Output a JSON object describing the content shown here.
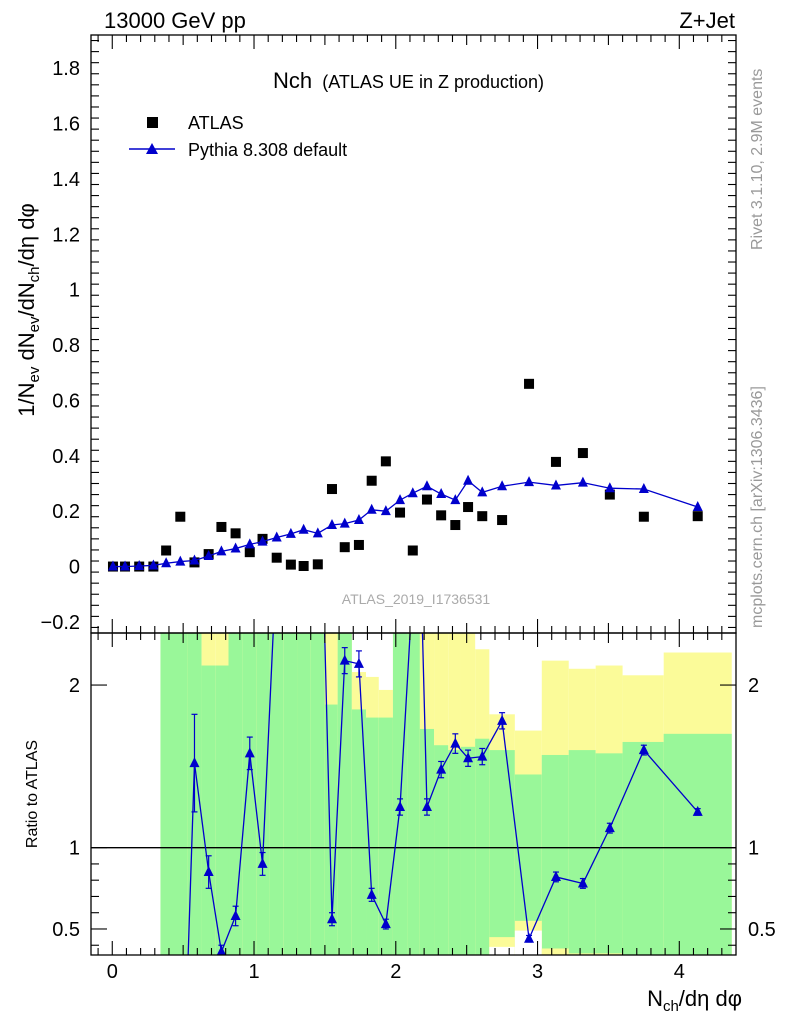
{
  "header": {
    "left": "13000 GeV pp",
    "right": "Z+Jet"
  },
  "side_labels": {
    "rivet": "Rivet 3.1.10,  2.9M events",
    "mcplots": "mcplots.cern.ch [arXiv:1306.3436]"
  },
  "colors": {
    "data": "#000000",
    "mc": "#0000cc",
    "band_inner": "#99f799",
    "band_outer": "#fbfb99"
  },
  "chart_data": [
    {
      "type": "scatter",
      "panel": "main",
      "title": "Nch",
      "subtitle": "(ATLAS UE in Z production)",
      "watermark": "ATLAS_2019_I1736531",
      "xlabel": "N_ch/dη dφ",
      "ylabel": "1/N_ev dN_ev/dN_ch/dη dφ",
      "xlim": [
        -0.15,
        4.4
      ],
      "ylim": [
        -0.24,
        1.92
      ],
      "yticks": [
        -0.2,
        0,
        0.2,
        0.4,
        0.6,
        0.8,
        1,
        1.2,
        1.4,
        1.6,
        1.8
      ],
      "ytick_labels": [
        "−0.2",
        "0",
        "0.2",
        "0.4",
        "0.6",
        "0.8",
        "1",
        "1.2",
        "1.4",
        "1.6",
        "1.8"
      ],
      "xticks": [
        0,
        1,
        2,
        3,
        4
      ],
      "xtick_labels": [
        "0",
        "1",
        "2",
        "3",
        "4"
      ],
      "legend": {
        "data_label": "ATLAS",
        "mc_label": "Pythia 8.308 default",
        "position": "top-left"
      },
      "data_points": [
        {
          "x": 0.005,
          "y": 0.0
        },
        {
          "x": 0.09,
          "y": 0.0
        },
        {
          "x": 0.19,
          "y": 0.0
        },
        {
          "x": 0.29,
          "y": 0.0
        },
        {
          "x": 0.38,
          "y": 0.058
        },
        {
          "x": 0.48,
          "y": 0.18
        },
        {
          "x": 0.58,
          "y": 0.015
        },
        {
          "x": 0.68,
          "y": 0.045
        },
        {
          "x": 0.77,
          "y": 0.143
        },
        {
          "x": 0.87,
          "y": 0.12
        },
        {
          "x": 0.97,
          "y": 0.052
        },
        {
          "x": 1.06,
          "y": 0.1
        },
        {
          "x": 1.16,
          "y": 0.032
        },
        {
          "x": 1.26,
          "y": 0.007
        },
        {
          "x": 1.35,
          "y": 0.002
        },
        {
          "x": 1.45,
          "y": 0.008
        },
        {
          "x": 1.55,
          "y": 0.28
        },
        {
          "x": 1.64,
          "y": 0.07
        },
        {
          "x": 1.74,
          "y": 0.078
        },
        {
          "x": 1.83,
          "y": 0.31
        },
        {
          "x": 1.93,
          "y": 0.38
        },
        {
          "x": 2.03,
          "y": 0.195
        },
        {
          "x": 2.12,
          "y": 0.058
        },
        {
          "x": 2.22,
          "y": 0.242
        },
        {
          "x": 2.32,
          "y": 0.185
        },
        {
          "x": 2.42,
          "y": 0.15
        },
        {
          "x": 2.51,
          "y": 0.215
        },
        {
          "x": 2.61,
          "y": 0.182
        },
        {
          "x": 2.75,
          "y": 0.168
        },
        {
          "x": 2.94,
          "y": 0.66
        },
        {
          "x": 3.13,
          "y": 0.378
        },
        {
          "x": 3.32,
          "y": 0.41
        },
        {
          "x": 3.51,
          "y": 0.26
        },
        {
          "x": 3.75,
          "y": 0.18
        },
        {
          "x": 4.13,
          "y": 0.182
        }
      ],
      "mc_points": [
        {
          "x": 0.005,
          "y": 0.0
        },
        {
          "x": 0.09,
          "y": 0.0
        },
        {
          "x": 0.19,
          "y": 0.002
        },
        {
          "x": 0.29,
          "y": 0.004
        },
        {
          "x": 0.38,
          "y": 0.012
        },
        {
          "x": 0.48,
          "y": 0.018
        },
        {
          "x": 0.58,
          "y": 0.022
        },
        {
          "x": 0.68,
          "y": 0.038
        },
        {
          "x": 0.77,
          "y": 0.055
        },
        {
          "x": 0.87,
          "y": 0.065
        },
        {
          "x": 0.97,
          "y": 0.08
        },
        {
          "x": 1.06,
          "y": 0.09
        },
        {
          "x": 1.16,
          "y": 0.105
        },
        {
          "x": 1.26,
          "y": 0.118
        },
        {
          "x": 1.35,
          "y": 0.133
        },
        {
          "x": 1.45,
          "y": 0.12
        },
        {
          "x": 1.55,
          "y": 0.15
        },
        {
          "x": 1.64,
          "y": 0.155
        },
        {
          "x": 1.74,
          "y": 0.168
        },
        {
          "x": 1.83,
          "y": 0.205
        },
        {
          "x": 1.93,
          "y": 0.2
        },
        {
          "x": 2.03,
          "y": 0.24
        },
        {
          "x": 2.12,
          "y": 0.265
        },
        {
          "x": 2.22,
          "y": 0.29
        },
        {
          "x": 2.32,
          "y": 0.262
        },
        {
          "x": 2.42,
          "y": 0.24
        },
        {
          "x": 2.51,
          "y": 0.31
        },
        {
          "x": 2.61,
          "y": 0.268
        },
        {
          "x": 2.75,
          "y": 0.29
        },
        {
          "x": 2.94,
          "y": 0.305
        },
        {
          "x": 3.13,
          "y": 0.293
        },
        {
          "x": 3.32,
          "y": 0.303
        },
        {
          "x": 3.51,
          "y": 0.283
        },
        {
          "x": 3.75,
          "y": 0.28
        },
        {
          "x": 4.13,
          "y": 0.215
        }
      ]
    },
    {
      "type": "line",
      "panel": "ratio",
      "ylabel": "Ratio to ATLAS",
      "xlim": [
        -0.15,
        4.4
      ],
      "ylim": [
        0.34,
        2.32
      ],
      "yticks": [
        0.5,
        1,
        2
      ],
      "ytick_labels": [
        "0.5",
        "1",
        "2"
      ],
      "reference_line": 1,
      "bands": [
        {
          "x0": 0.34,
          "x1": 0.53,
          "inner": [
            0.0,
            2.4
          ],
          "outer": [
            0.0,
            2.4
          ]
        },
        {
          "x0": 0.53,
          "x1": 0.63,
          "inner": [
            0.0,
            2.4
          ],
          "outer": [
            0.0,
            2.4
          ]
        },
        {
          "x0": 0.63,
          "x1": 0.73,
          "inner": [
            0.0,
            2.12
          ],
          "outer": [
            0.0,
            2.4
          ]
        },
        {
          "x0": 0.73,
          "x1": 0.82,
          "inner": [
            0.0,
            2.12
          ],
          "outer": [
            0.0,
            2.4
          ]
        },
        {
          "x0": 0.82,
          "x1": 0.92,
          "inner": [
            0.0,
            2.4
          ],
          "outer": [
            0.0,
            2.4
          ]
        },
        {
          "x0": 0.92,
          "x1": 1.02,
          "inner": [
            0.0,
            2.4
          ],
          "outer": [
            0.0,
            2.4
          ]
        },
        {
          "x0": 1.02,
          "x1": 1.11,
          "inner": [
            0.0,
            2.4
          ],
          "outer": [
            0.0,
            2.4
          ]
        },
        {
          "x0": 1.11,
          "x1": 1.21,
          "inner": [
            0.0,
            2.4
          ],
          "outer": [
            0.0,
            2.4
          ]
        },
        {
          "x0": 1.21,
          "x1": 1.31,
          "inner": [
            0.0,
            2.4
          ],
          "outer": [
            0.0,
            2.4
          ]
        },
        {
          "x0": 1.31,
          "x1": 1.4,
          "inner": [
            0.0,
            2.4
          ],
          "outer": [
            0.0,
            2.4
          ]
        },
        {
          "x0": 1.4,
          "x1": 1.5,
          "inner": [
            0.0,
            2.4
          ],
          "outer": [
            0.0,
            2.4
          ]
        },
        {
          "x0": 1.5,
          "x1": 1.59,
          "inner": [
            0.0,
            1.88
          ],
          "outer": [
            0.0,
            2.4
          ]
        },
        {
          "x0": 1.59,
          "x1": 1.69,
          "inner": [
            0.0,
            2.4
          ],
          "outer": [
            0.0,
            2.4
          ]
        },
        {
          "x0": 1.69,
          "x1": 1.79,
          "inner": [
            0.0,
            1.85
          ],
          "outer": [
            0.0,
            2.08
          ]
        },
        {
          "x0": 1.79,
          "x1": 1.88,
          "inner": [
            0.0,
            1.8
          ],
          "outer": [
            0.0,
            2.05
          ]
        },
        {
          "x0": 1.88,
          "x1": 1.98,
          "inner": [
            0.0,
            1.8
          ],
          "outer": [
            0.0,
            1.97
          ]
        },
        {
          "x0": 1.98,
          "x1": 2.08,
          "inner": [
            0.0,
            2.4
          ],
          "outer": [
            0.0,
            2.4
          ]
        },
        {
          "x0": 2.08,
          "x1": 2.17,
          "inner": [
            0.0,
            2.4
          ],
          "outer": [
            0.0,
            2.4
          ]
        },
        {
          "x0": 2.17,
          "x1": 2.27,
          "inner": [
            0.0,
            1.73
          ],
          "outer": [
            0.0,
            2.4
          ]
        },
        {
          "x0": 2.27,
          "x1": 2.37,
          "inner": [
            0.0,
            1.63
          ],
          "outer": [
            0.0,
            2.4
          ]
        },
        {
          "x0": 2.37,
          "x1": 2.46,
          "inner": [
            0.0,
            1.6
          ],
          "outer": [
            0.0,
            2.4
          ]
        },
        {
          "x0": 2.46,
          "x1": 2.56,
          "inner": [
            0.0,
            1.62
          ],
          "outer": [
            0.0,
            2.4
          ]
        },
        {
          "x0": 2.56,
          "x1": 2.66,
          "inner": [
            0.0,
            1.67
          ],
          "outer": [
            0.0,
            2.22
          ]
        },
        {
          "x0": 2.66,
          "x1": 2.84,
          "inner": [
            0.0,
            1.6
          ],
          "outer": [
            0.0,
            1.82
          ]
        },
        {
          "x0": 2.84,
          "x1": 3.03,
          "inner": [
            0.0,
            1.45
          ],
          "outer": [
            0.0,
            1.72
          ]
        },
        {
          "x0": 3.03,
          "x1": 3.22,
          "inner": [
            0.0,
            1.57
          ],
          "outer": [
            0.0,
            2.15
          ]
        },
        {
          "x0": 3.22,
          "x1": 3.41,
          "inner": [
            0.0,
            1.6
          ],
          "outer": [
            0.0,
            2.1
          ]
        },
        {
          "x0": 3.41,
          "x1": 3.6,
          "inner": [
            0.0,
            1.58
          ],
          "outer": [
            0.0,
            2.12
          ]
        },
        {
          "x0": 3.6,
          "x1": 3.89,
          "inner": [
            0.0,
            1.65
          ],
          "outer": [
            0.0,
            2.06
          ]
        },
        {
          "x0": 3.89,
          "x1": 4.37,
          "inner": [
            0.0,
            1.7
          ],
          "outer": [
            0.0,
            2.2
          ]
        }
      ],
      "band_holes": [
        {
          "x0": 0.34,
          "x1": 0.53,
          "inner": [
            0.0,
            0.0
          ]
        },
        {
          "x0": 2.66,
          "x1": 2.84,
          "inner": [
            0.0,
            0.45
          ],
          "outer": [
            0.0,
            0.0
          ]
        },
        {
          "x0": 2.84,
          "x1": 3.03,
          "inner": [
            0.0,
            0.55
          ],
          "outer": [
            0.0,
            0.0
          ]
        },
        {
          "x0": 3.03,
          "x1": 3.22,
          "inner": [
            0.0,
            0.38
          ],
          "outer": [
            0.0,
            0.0
          ]
        },
        {
          "x0": 3.22,
          "x1": 3.41,
          "inner": [
            0.0,
            0.35
          ],
          "outer": [
            0.0,
            0.0
          ]
        },
        {
          "x0": 3.41,
          "x1": 3.6,
          "inner": [
            0.0,
            0.35
          ],
          "outer": [
            0.0,
            0.0
          ]
        }
      ],
      "ratio_points": [
        {
          "x": 0.53,
          "y": 0.2,
          "err": 0
        },
        {
          "x": 0.58,
          "y": 1.52,
          "err": 0.3
        },
        {
          "x": 0.68,
          "y": 0.85,
          "err": 0.1
        },
        {
          "x": 0.77,
          "y": 0.36,
          "err": 0.04
        },
        {
          "x": 0.87,
          "y": 0.58,
          "err": 0.06
        },
        {
          "x": 0.97,
          "y": 1.58,
          "err": 0.1
        },
        {
          "x": 1.06,
          "y": 0.9,
          "err": 0.07
        },
        {
          "x": 1.15,
          "y": 2.6,
          "err": 0
        },
        {
          "x": 1.49,
          "y": 2.6,
          "err": 0
        },
        {
          "x": 1.55,
          "y": 0.56,
          "err": 0.04
        },
        {
          "x": 1.64,
          "y": 2.15,
          "err": 0.08
        },
        {
          "x": 1.74,
          "y": 2.13,
          "err": 0.08
        },
        {
          "x": 1.83,
          "y": 0.71,
          "err": 0.04
        },
        {
          "x": 1.93,
          "y": 0.53,
          "err": 0.03
        },
        {
          "x": 2.03,
          "y": 1.25,
          "err": 0.05
        },
        {
          "x": 2.12,
          "y": 2.6,
          "err": 0
        },
        {
          "x": 2.18,
          "y": 2.6,
          "err": 0
        },
        {
          "x": 2.22,
          "y": 1.25,
          "err": 0.05
        },
        {
          "x": 2.32,
          "y": 1.48,
          "err": 0.05
        },
        {
          "x": 2.42,
          "y": 1.64,
          "err": 0.06
        },
        {
          "x": 2.51,
          "y": 1.55,
          "err": 0.05
        },
        {
          "x": 2.61,
          "y": 1.56,
          "err": 0.05
        },
        {
          "x": 2.75,
          "y": 1.78,
          "err": 0.05
        },
        {
          "x": 2.94,
          "y": 0.44,
          "err": 0.02
        },
        {
          "x": 3.13,
          "y": 0.82,
          "err": 0.03
        },
        {
          "x": 3.32,
          "y": 0.78,
          "err": 0.03
        },
        {
          "x": 3.51,
          "y": 1.12,
          "err": 0.03
        },
        {
          "x": 3.75,
          "y": 1.6,
          "err": 0.03
        },
        {
          "x": 4.13,
          "y": 1.22,
          "err": 0.02
        }
      ]
    }
  ]
}
